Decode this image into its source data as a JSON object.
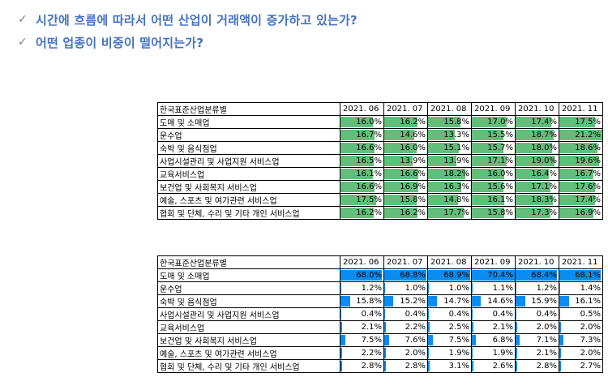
{
  "bullets": [
    {
      "icon": "check-icon",
      "text": "시간에 흐름에 따라서 어떤 산업이 거래액이 증가하고 있는가?"
    },
    {
      "icon": "check-icon",
      "text": "어떤 업종이 비중이 떨어지는가?"
    }
  ],
  "colors": {
    "bullet_text": "#4472c4",
    "green_bar": "#63be7b",
    "blue_bar": "#0b8cf0"
  },
  "table1": {
    "header": "한국표준산업분류별",
    "columns": [
      "2021. 06",
      "2021. 07",
      "2021. 08",
      "2021. 09",
      "2021. 10",
      "2021. 11"
    ],
    "rows": [
      {
        "label": "도매 및 소매업",
        "values": [
          "16.0%",
          "16.2%",
          "15.8%",
          "17.0%",
          "17.4%",
          "17.5%"
        ]
      },
      {
        "label": "운수업",
        "values": [
          "16.7%",
          "14.6%",
          "13.3%",
          "15.5%",
          "18.7%",
          "21.2%"
        ]
      },
      {
        "label": "숙박 및 음식점업",
        "values": [
          "16.6%",
          "16.0%",
          "15.1%",
          "15.7%",
          "18.0%",
          "18.6%"
        ]
      },
      {
        "label": "사업시설관리 및 사업지원 서비스업",
        "values": [
          "16.5%",
          "13.9%",
          "13.9%",
          "17.1%",
          "19.0%",
          "19.6%"
        ]
      },
      {
        "label": "교육서비스업",
        "values": [
          "16.1%",
          "16.6%",
          "18.2%",
          "16.0%",
          "16.4%",
          "16.7%"
        ]
      },
      {
        "label": "보건업 및 사회복지 서비스업",
        "values": [
          "16.6%",
          "16.9%",
          "16.3%",
          "15.6%",
          "17.1%",
          "17.6%"
        ]
      },
      {
        "label": "예술, 스포츠 및 여가관련 서비스업",
        "values": [
          "17.5%",
          "15.8%",
          "14.8%",
          "16.1%",
          "18.3%",
          "17.4%"
        ]
      },
      {
        "label": "협회 및 단체, 수리 및 기타 개인 서비스업",
        "values": [
          "16.2%",
          "16.2%",
          "17.7%",
          "15.8%",
          "17.3%",
          "16.9%"
        ]
      }
    ]
  },
  "table2": {
    "header": "한국표준산업분류별",
    "columns": [
      "2021. 06",
      "2021. 07",
      "2021. 08",
      "2021. 09",
      "2021. 10",
      "2021. 11"
    ],
    "rows": [
      {
        "label": "도매 및 소매업",
        "values": [
          "68.0%",
          "68.8%",
          "68.9%",
          "70.4%",
          "68.4%",
          "68.1%"
        ]
      },
      {
        "label": "운수업",
        "values": [
          "1.2%",
          "1.0%",
          "1.0%",
          "1.1%",
          "1.2%",
          "1.4%"
        ]
      },
      {
        "label": "숙박 및 음식점업",
        "values": [
          "15.8%",
          "15.2%",
          "14.7%",
          "14.6%",
          "15.9%",
          "16.1%"
        ]
      },
      {
        "label": "사업시설관리 및 사업지원 서비스업",
        "values": [
          "0.4%",
          "0.4%",
          "0.4%",
          "0.4%",
          "0.4%",
          "0.5%"
        ]
      },
      {
        "label": "교육서비스업",
        "values": [
          "2.1%",
          "2.2%",
          "2.5%",
          "2.1%",
          "2.0%",
          "2.0%"
        ]
      },
      {
        "label": "보건업 및 사회복지 서비스업",
        "values": [
          "7.5%",
          "7.6%",
          "7.5%",
          "6.8%",
          "7.1%",
          "7.3%"
        ]
      },
      {
        "label": "예술, 스포츠 및 여가관련 서비스업",
        "values": [
          "2.2%",
          "2.0%",
          "1.9%",
          "1.9%",
          "2.1%",
          "2.0%"
        ]
      },
      {
        "label": "협회 및 단체, 수리 및 기타 개인 서비스업",
        "values": [
          "2.8%",
          "2.8%",
          "3.1%",
          "2.6%",
          "2.8%",
          "2.7%"
        ]
      }
    ]
  }
}
